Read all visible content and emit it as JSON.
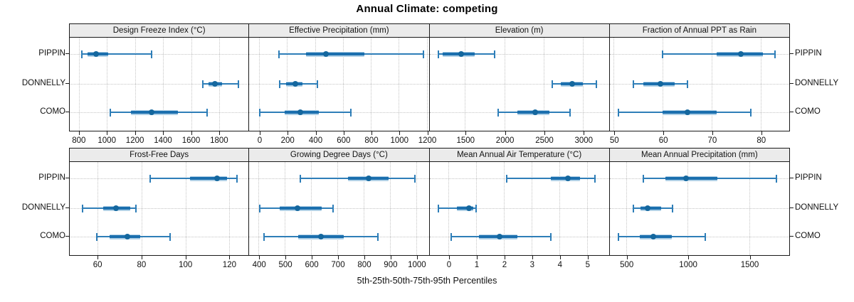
{
  "title": "Annual Climate: competing",
  "caption": "5th-25th-50th-75th-95th Percentiles",
  "colors": {
    "median_dot": "#14679e",
    "iqr_line": "#1b6fae",
    "range_line": "#2e7eb8",
    "iqr_band": "#b0d0e6",
    "strip_bg": "#ebebeb",
    "grid": "#c4c4c4",
    "border": "#1a1a1a"
  },
  "chart_data": {
    "type": "scatter",
    "subtype": "percentile-dotplot-lattice",
    "categories": [
      "PIPPIN",
      "DONNELLY",
      "COMO"
    ],
    "percentiles": [
      5,
      25,
      50,
      75,
      95
    ],
    "legend_position": "none",
    "grid": "dotted",
    "layout": "2 rows x 4 columns of panels",
    "panels": [
      {
        "title": "Design Freeze Index (°C)",
        "xlim": [
          735,
          2010
        ],
        "ticks": [
          800,
          1000,
          1200,
          1400,
          1600,
          1800
        ],
        "series": [
          {
            "name": "PIPPIN",
            "values": [
              820,
              860,
              925,
              1010,
              1320
            ]
          },
          {
            "name": "DONNELLY",
            "values": [
              1685,
              1725,
              1770,
              1820,
              1935
            ]
          },
          {
            "name": "COMO",
            "values": [
              1025,
              1170,
              1320,
              1505,
              1715
            ]
          }
        ]
      },
      {
        "title": "Effective Precipitation (mm)",
        "xlim": [
          -70,
          1210
        ],
        "ticks": [
          0,
          200,
          400,
          600,
          800,
          1000,
          1200
        ],
        "series": [
          {
            "name": "PIPPIN",
            "values": [
              145,
              335,
              480,
              755,
              1175
            ]
          },
          {
            "name": "DONNELLY",
            "values": [
              150,
              195,
              260,
              310,
              420
            ]
          },
          {
            "name": "COMO",
            "values": [
              5,
              185,
              295,
              430,
              655
            ]
          }
        ]
      },
      {
        "title": "Elevation (m)",
        "xlim": [
          1050,
          3320
        ],
        "ticks": [
          1500,
          2000,
          2500,
          3000
        ],
        "series": [
          {
            "name": "PIPPIN",
            "values": [
              1160,
              1215,
              1455,
              1620,
              1880
            ]
          },
          {
            "name": "DONNELLY",
            "values": [
              2605,
              2715,
              2865,
              3000,
              3165
            ]
          },
          {
            "name": "COMO",
            "values": [
              1925,
              2165,
              2390,
              2575,
              2835
            ]
          }
        ]
      },
      {
        "title": "Fraction of Annual PPT as Rain",
        "xlim": [
          49.2,
          85.7
        ],
        "ticks": [
          50,
          60,
          70,
          80
        ],
        "series": [
          {
            "name": "PIPPIN",
            "values": [
              60,
              71,
              76,
              80.5,
              83
            ]
          },
          {
            "name": "DONNELLY",
            "values": [
              54,
              56,
              59.5,
              62.5,
              65
            ]
          },
          {
            "name": "COMO",
            "values": [
              51,
              60,
              65,
              71,
              78
            ]
          }
        ]
      },
      {
        "title": "Frost-Free Days",
        "xlim": [
          47.3,
          128.7
        ],
        "ticks": [
          60,
          80,
          100,
          120
        ],
        "series": [
          {
            "name": "PIPPIN",
            "values": [
              84,
              102,
              114.5,
              119,
              123.5
            ]
          },
          {
            "name": "DONNELLY",
            "values": [
              53,
              62.5,
              68.5,
              75,
              77.5
            ]
          },
          {
            "name": "COMO",
            "values": [
              59.5,
              65.5,
              73.5,
              79.5,
              93
            ]
          }
        ]
      },
      {
        "title": "Growing Degree Days (°C)",
        "xlim": [
          365,
          1045
        ],
        "ticks": [
          400,
          500,
          600,
          700,
          800,
          900,
          1000
        ],
        "series": [
          {
            "name": "PIPPIN",
            "values": [
              560,
              740,
              820,
              895,
              995
            ]
          },
          {
            "name": "DONNELLY",
            "values": [
              405,
              482,
              548,
              640,
              685
            ]
          },
          {
            "name": "COMO",
            "values": [
              420,
              552,
              638,
              725,
              855
            ]
          }
        ]
      },
      {
        "title": "Mean Annual Air Temperature (°C)",
        "xlim": [
          -0.68,
          5.77
        ],
        "ticks": [
          0,
          1,
          2,
          3,
          4,
          5
        ],
        "series": [
          {
            "name": "PIPPIN",
            "values": [
              2.1,
              3.7,
              4.3,
              4.75,
              5.3
            ]
          },
          {
            "name": "DONNELLY",
            "values": [
              -0.35,
              0.3,
              0.75,
              0.9,
              1.0
            ]
          },
          {
            "name": "COMO",
            "values": [
              0.1,
              1.1,
              1.85,
              2.5,
              3.7
            ]
          }
        ]
      },
      {
        "title": "Mean Annual Precipitation (mm)",
        "xlim": [
          367,
          1821
        ],
        "ticks": [
          500,
          1000,
          1500
        ],
        "series": [
          {
            "name": "PIPPIN",
            "values": [
              640,
              820,
              985,
              1240,
              1720
            ]
          },
          {
            "name": "DONNELLY",
            "values": [
              560,
              620,
              675,
              785,
              875
            ]
          },
          {
            "name": "COMO",
            "values": [
              440,
              610,
              720,
              870,
              1145
            ]
          }
        ]
      }
    ]
  }
}
